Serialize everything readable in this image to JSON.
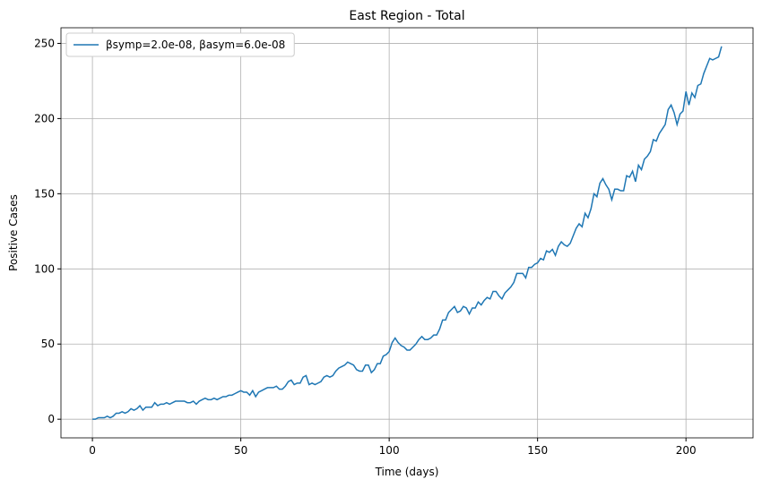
{
  "chart_data": {
    "type": "line",
    "title": "East Region - Total",
    "xlabel": "Time (days)",
    "ylabel": "Positive Cases",
    "x": [
      0,
      1,
      2,
      3,
      4,
      5,
      6,
      7,
      8,
      9,
      10,
      11,
      12,
      13,
      14,
      15,
      16,
      17,
      18,
      19,
      20,
      21,
      22,
      23,
      24,
      25,
      26,
      27,
      28,
      29,
      30,
      31,
      32,
      33,
      34,
      35,
      36,
      37,
      38,
      39,
      40,
      41,
      42,
      43,
      44,
      45,
      46,
      47,
      48,
      49,
      50,
      51,
      52,
      53,
      54,
      55,
      56,
      57,
      58,
      59,
      60,
      61,
      62,
      63,
      64,
      65,
      66,
      67,
      68,
      69,
      70,
      71,
      72,
      73,
      74,
      75,
      76,
      77,
      78,
      79,
      80,
      81,
      82,
      83,
      84,
      85,
      86,
      87,
      88,
      89,
      90,
      91,
      92,
      93,
      94,
      95,
      96,
      97,
      98,
      99,
      100,
      101,
      102,
      103,
      104,
      105,
      106,
      107,
      108,
      109,
      110,
      111,
      112,
      113,
      114,
      115,
      116,
      117,
      118,
      119,
      120,
      121,
      122,
      123,
      124,
      125,
      126,
      127,
      128,
      129,
      130,
      131,
      132,
      133,
      134,
      135,
      136,
      137,
      138,
      139,
      140,
      141,
      142,
      143,
      144,
      145,
      146,
      147,
      148,
      149,
      150,
      151,
      152,
      153,
      154,
      155,
      156,
      157,
      158,
      159,
      160,
      161,
      162,
      163,
      164,
      165,
      166,
      167,
      168,
      169,
      170,
      171,
      172,
      173,
      174,
      175,
      176,
      177,
      178,
      179,
      180,
      181,
      182,
      183,
      184,
      185,
      186,
      187,
      188,
      189,
      190,
      191,
      192,
      193,
      194,
      195,
      196,
      197,
      198,
      199,
      200,
      201,
      202,
      203,
      204,
      205,
      206,
      207,
      208,
      209,
      210,
      211,
      212
    ],
    "series": [
      {
        "name": "βsymp=2.0e-08, βasym=6.0e-08",
        "color": "#1f77b4",
        "values": [
          0,
          0,
          1,
          1,
          1,
          2,
          1,
          2,
          4,
          4,
          5,
          4,
          5,
          7,
          6,
          7,
          9,
          6,
          8,
          8,
          8,
          11,
          9,
          10,
          10,
          11,
          10,
          11,
          12,
          12,
          12,
          12,
          11,
          11,
          12,
          10,
          12,
          13,
          14,
          13,
          13,
          14,
          13,
          14,
          15,
          15,
          16,
          16,
          17,
          18,
          19,
          18,
          18,
          16,
          19,
          15,
          18,
          19,
          20,
          21,
          21,
          21,
          22,
          20,
          20,
          22,
          25,
          26,
          23,
          24,
          24,
          28,
          29,
          23,
          24,
          23,
          24,
          25,
          28,
          29,
          28,
          29,
          32,
          34,
          35,
          36,
          38,
          37,
          36,
          33,
          32,
          32,
          36,
          36,
          31,
          33,
          37,
          37,
          42,
          43,
          45,
          51,
          54,
          51,
          49,
          48,
          46,
          46,
          48,
          50,
          53,
          55,
          53,
          53,
          54,
          56,
          56,
          60,
          66,
          66,
          71,
          73,
          75,
          71,
          72,
          75,
          74,
          70,
          74,
          74,
          78,
          76,
          79,
          81,
          80,
          85,
          85,
          82,
          80,
          84,
          86,
          88,
          91,
          97,
          97,
          97,
          94,
          101,
          101,
          103,
          104,
          107,
          106,
          112,
          111,
          113,
          109,
          115,
          118,
          116,
          115,
          117,
          122,
          127,
          130,
          128,
          137,
          134,
          140,
          150,
          148,
          157,
          160,
          156,
          153,
          146,
          153,
          153,
          152,
          152,
          162,
          161,
          165,
          158,
          169,
          166,
          173,
          175,
          178,
          186,
          185,
          190,
          193,
          196,
          206,
          209,
          204,
          196,
          203,
          205,
          218,
          209,
          217,
          214,
          222,
          223,
          230,
          235,
          240,
          239,
          240,
          241,
          248
        ]
      }
    ],
    "xlim": [
      -10.6,
      222.6
    ],
    "ylim": [
      -12.4,
      260.4
    ],
    "xticks": [
      0,
      50,
      100,
      150,
      200
    ],
    "yticks": [
      0,
      50,
      100,
      150,
      200,
      250
    ],
    "grid": true,
    "legend": "upper left"
  }
}
